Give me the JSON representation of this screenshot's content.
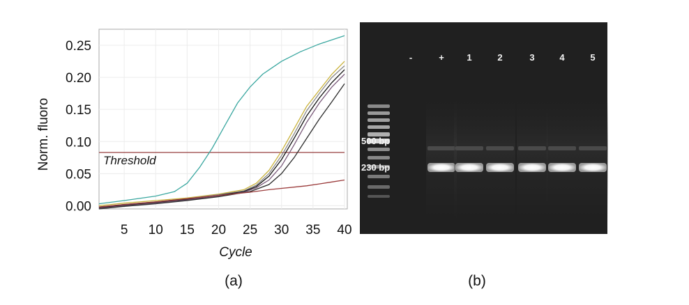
{
  "panels": {
    "a": {
      "label": "(a)"
    },
    "b": {
      "label": "(b)"
    }
  },
  "chart_data": [
    {
      "type": "line",
      "panel": "a",
      "xlabel": "Cycle",
      "ylabel": "Norm. fluoro",
      "xlim": [
        1,
        40
      ],
      "ylim": [
        -0.005,
        0.275
      ],
      "xticks": [
        5,
        10,
        15,
        20,
        25,
        30,
        35,
        40
      ],
      "yticks": [
        "0.00",
        "0.05",
        "0.10",
        "0.15",
        "0.20",
        "0.25"
      ],
      "grid": true,
      "threshold": {
        "label": "Threshold",
        "value": 0.083,
        "color": "#8b2a2a"
      },
      "series": [
        {
          "color": "#3aa7a0",
          "x": [
            1,
            5,
            10,
            13,
            15,
            17,
            19,
            21,
            23,
            25,
            27,
            30,
            33,
            36,
            40
          ],
          "y": [
            0.003,
            0.008,
            0.015,
            0.022,
            0.035,
            0.06,
            0.09,
            0.125,
            0.16,
            0.185,
            0.205,
            0.225,
            0.24,
            0.252,
            0.265
          ]
        },
        {
          "color": "#c9b23a",
          "x": [
            1,
            5,
            10,
            15,
            20,
            24,
            26,
            28,
            30,
            32,
            34,
            36,
            38,
            40
          ],
          "y": [
            0.0,
            0.004,
            0.008,
            0.012,
            0.018,
            0.025,
            0.035,
            0.055,
            0.085,
            0.12,
            0.155,
            0.18,
            0.205,
            0.225
          ]
        },
        {
          "color": "#888888",
          "x": [
            1,
            5,
            10,
            15,
            20,
            24,
            26,
            28,
            30,
            32,
            34,
            36,
            38,
            40
          ],
          "y": [
            -0.002,
            0.002,
            0.006,
            0.011,
            0.017,
            0.023,
            0.032,
            0.05,
            0.078,
            0.112,
            0.148,
            0.175,
            0.2,
            0.218
          ]
        },
        {
          "color": "#111111",
          "x": [
            1,
            5,
            10,
            15,
            20,
            24,
            26,
            28,
            30,
            32,
            34,
            36,
            38,
            40
          ],
          "y": [
            -0.003,
            0.001,
            0.005,
            0.01,
            0.016,
            0.022,
            0.03,
            0.046,
            0.072,
            0.105,
            0.14,
            0.168,
            0.192,
            0.212
          ]
        },
        {
          "color": "#7a5a7a",
          "x": [
            1,
            5,
            10,
            15,
            20,
            24,
            26,
            28,
            30,
            32,
            34,
            36,
            38,
            40
          ],
          "y": [
            -0.004,
            0.0,
            0.004,
            0.009,
            0.015,
            0.021,
            0.028,
            0.04,
            0.062,
            0.095,
            0.13,
            0.16,
            0.185,
            0.205
          ]
        },
        {
          "color": "#2b2b2b",
          "x": [
            1,
            5,
            10,
            15,
            20,
            25,
            28,
            30,
            32,
            34,
            36,
            38,
            40
          ],
          "y": [
            -0.005,
            -0.001,
            0.003,
            0.008,
            0.014,
            0.022,
            0.033,
            0.05,
            0.075,
            0.105,
            0.135,
            0.162,
            0.19
          ]
        },
        {
          "color": "#9a3a3a",
          "x": [
            1,
            5,
            10,
            15,
            20,
            25,
            28,
            30,
            32,
            34,
            36,
            38,
            40
          ],
          "y": [
            -0.002,
            0.002,
            0.006,
            0.011,
            0.016,
            0.021,
            0.025,
            0.027,
            0.029,
            0.031,
            0.034,
            0.037,
            0.04
          ]
        }
      ]
    },
    {
      "type": "gel",
      "panel": "b",
      "lane_labels": [
        "-",
        "+",
        "1",
        "2",
        "3",
        "4",
        "5"
      ],
      "marker_labels": [
        "500 bp",
        "230 bp"
      ],
      "band_present": [
        false,
        true,
        true,
        true,
        true,
        true,
        true
      ]
    }
  ]
}
